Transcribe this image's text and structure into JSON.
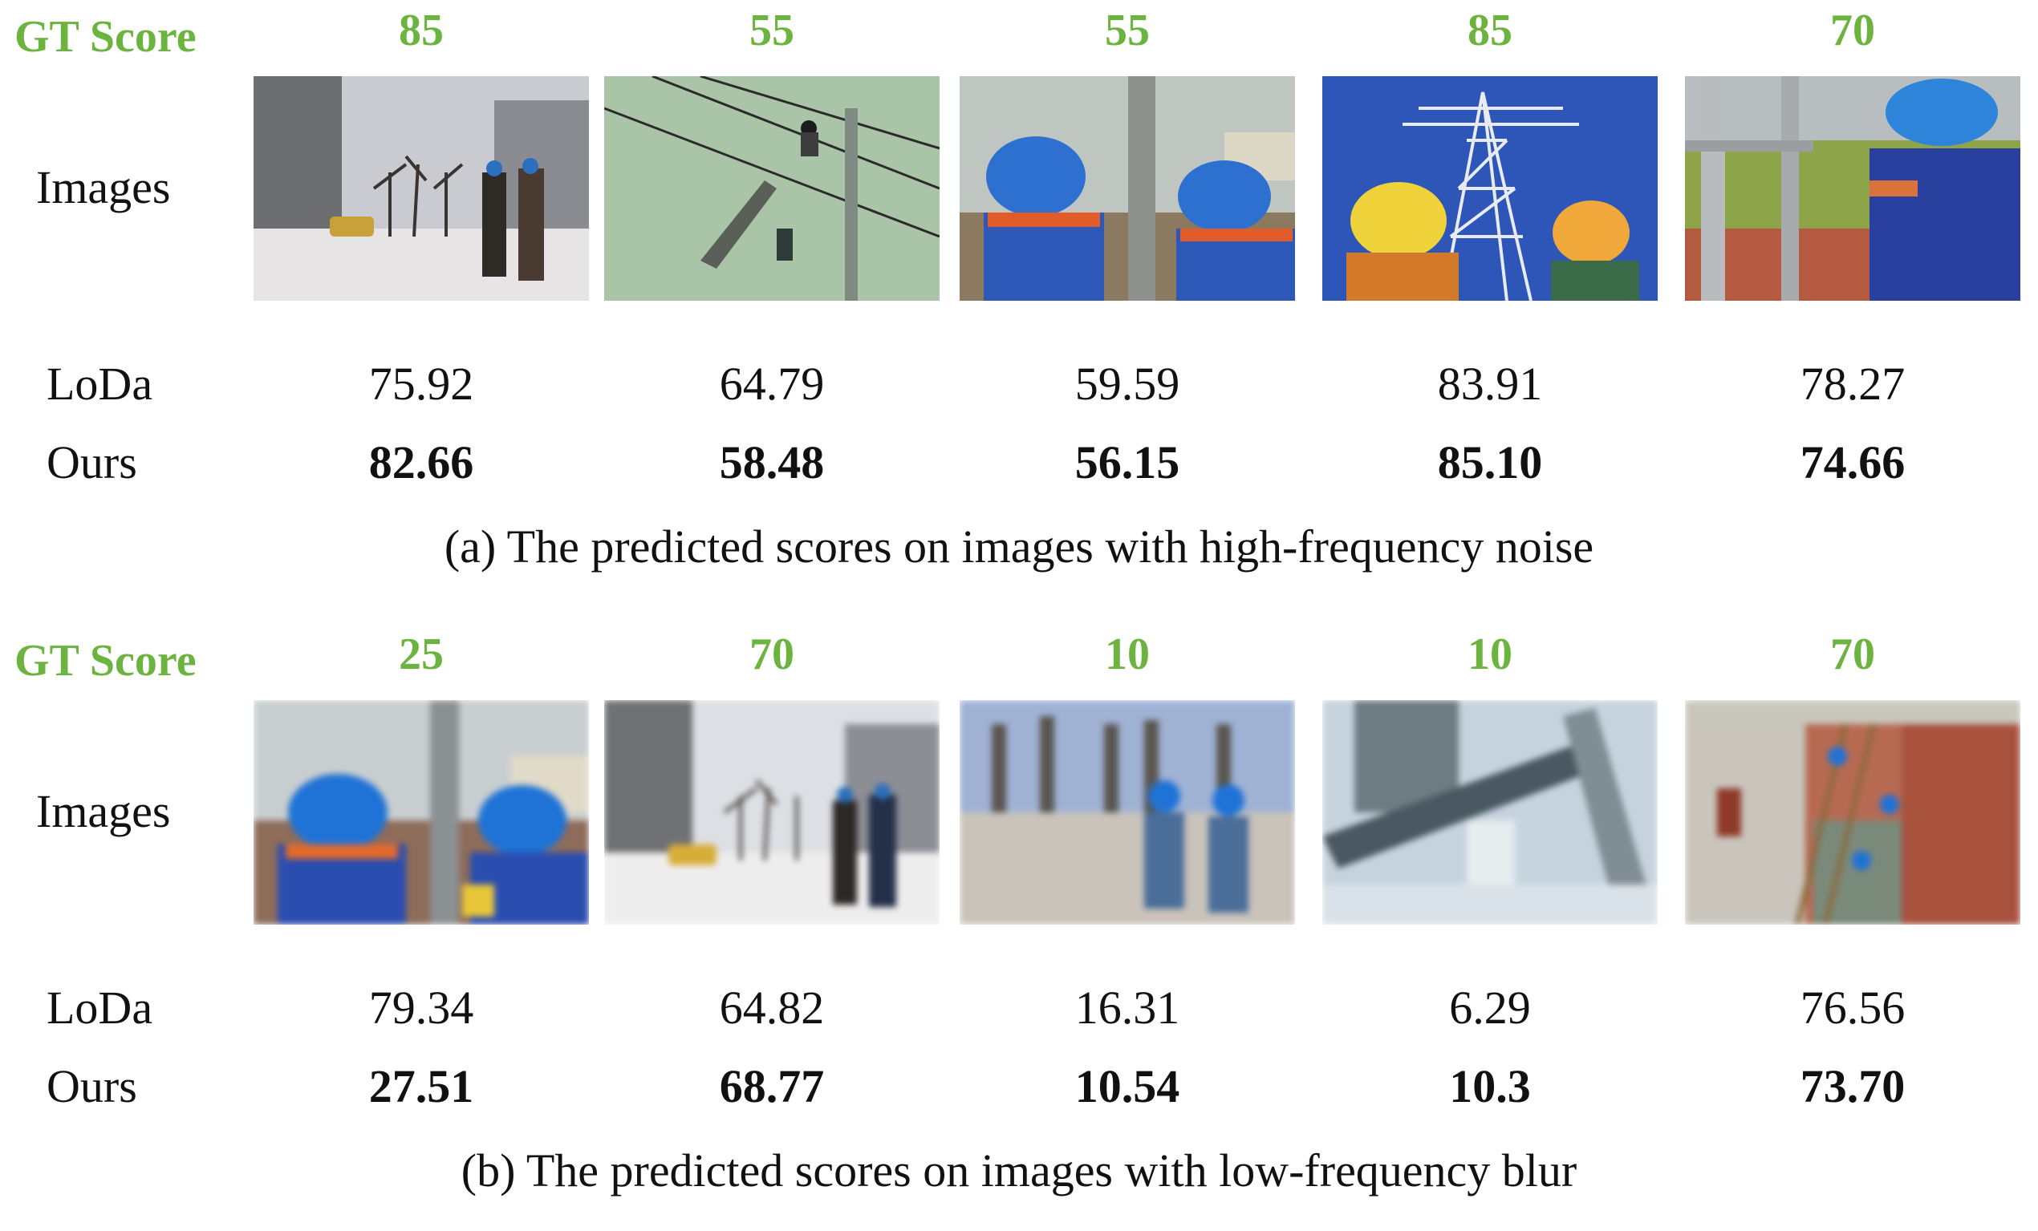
{
  "panels": [
    {
      "gt_label": "GT Score",
      "row_labels": {
        "images": "Images",
        "loda": "LoDa",
        "ours": "Ours"
      },
      "columns": [
        {
          "gt": "85",
          "loda": "75.92",
          "ours": "82.66",
          "scene": "snowy street with two workers"
        },
        {
          "gt": "55",
          "loda": "64.79",
          "ours": "58.48",
          "scene": "worker on power pole with wires"
        },
        {
          "gt": "55",
          "loda": "59.59",
          "ours": "56.15",
          "scene": "two workers in blue helmets by tower"
        },
        {
          "gt": "85",
          "loda": "83.91",
          "ours": "85.10",
          "scene": "transmission tower with two helmets"
        },
        {
          "gt": "70",
          "loda": "78.27",
          "ours": "74.66",
          "scene": "worker climbing tower ladder"
        }
      ],
      "caption": "(a) The predicted scores on images with high-frequency noise"
    },
    {
      "gt_label": "GT Score",
      "row_labels": {
        "images": "Images",
        "loda": "LoDa",
        "ours": "Ours"
      },
      "columns": [
        {
          "gt": "25",
          "loda": "79.34",
          "ours": "27.51",
          "scene": "two workers in blue helmets by tower"
        },
        {
          "gt": "70",
          "loda": "64.82",
          "ours": "68.77",
          "scene": "snowy street with two workers"
        },
        {
          "gt": "10",
          "loda": "16.31",
          "ours": "10.54",
          "scene": "two workers in substation"
        },
        {
          "gt": "10",
          "loda": "6.29",
          "ours": "10.3",
          "scene": "steel beam of tower against sky"
        },
        {
          "gt": "70",
          "loda": "76.56",
          "ours": "73.70",
          "scene": "workers on ladders at brick building"
        }
      ],
      "caption": "(b) The predicted scores on images with low-frequency blur"
    }
  ],
  "colors": {
    "gt_green": "#6cb33f",
    "text": "#111111"
  }
}
